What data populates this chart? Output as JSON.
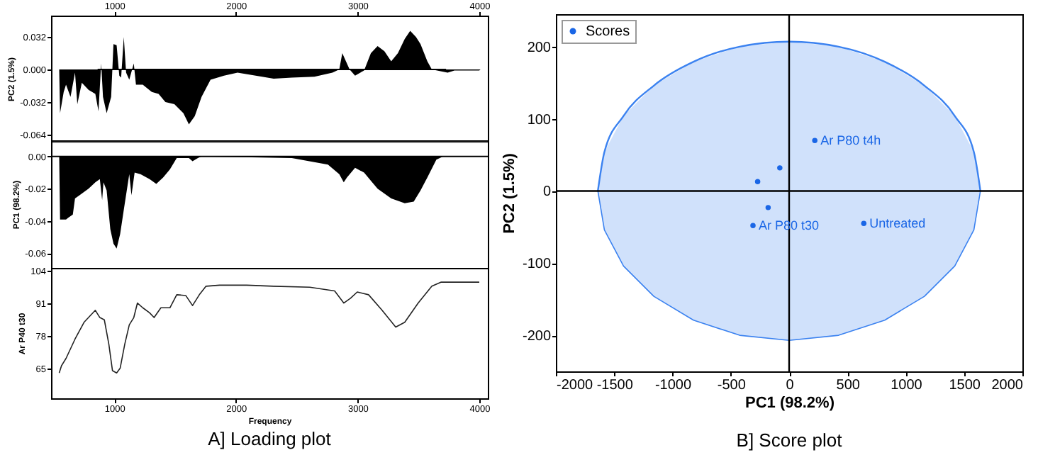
{
  "chart_data": [
    {
      "type": "area",
      "ylabel": "PC2 (1.5%)",
      "xlim": [
        480,
        4070
      ],
      "xticks": [
        1000,
        2000,
        3000,
        4000
      ],
      "x2lim": [
        480,
        4070
      ],
      "x2ticks": [
        1000,
        2000,
        3000,
        4000
      ],
      "tick_labels": "y",
      "ylim": [
        -0.071,
        0.053
      ],
      "yticks": [
        0.032,
        {
          "value": 0,
          "label": "0.000"
        },
        -0.032,
        -0.064
      ],
      "series": [
        {
          "color": "#000000",
          "x": [
            547,
            554,
            584,
            603,
            640,
            677,
            696,
            733,
            788,
            844,
            870,
            892,
            907,
            937,
            974,
            993,
            1019,
            1041,
            1056,
            1078,
            1097,
            1123,
            1160,
            1178,
            1234,
            1308,
            1364,
            1420,
            1494,
            1568,
            1613,
            1661,
            1717,
            1791,
            1902,
            2013,
            2162,
            2310,
            2459,
            2645,
            2793,
            2849,
            2874,
            2904,
            2934,
            2979,
            3053,
            3109,
            3164,
            3220,
            3276,
            3331,
            3387,
            3432,
            3480,
            3517,
            3573,
            3610,
            3740,
            3796,
            4000,
            4010
          ],
          "values": [
            0,
            -0.043,
            -0.022,
            -0.015,
            -0.027,
            -0.003,
            -0.034,
            -0.013,
            -0.02,
            -0.024,
            -0.041,
            0.006,
            -0.027,
            -0.043,
            -0.027,
            0.025,
            0.024,
            -0.006,
            -0.008,
            0.032,
            -0.003,
            -0.01,
            0.006,
            -0.015,
            -0.015,
            -0.022,
            -0.024,
            -0.032,
            -0.034,
            -0.043,
            -0.054,
            -0.046,
            -0.027,
            -0.01,
            -0.006,
            -0.003,
            -0.006,
            -0.009,
            -0.008,
            -0.007,
            -0.003,
            0,
            0.016,
            0.008,
            0,
            -0.006,
            -0.001,
            0.016,
            0.023,
            0.018,
            0.008,
            0.016,
            0.03,
            0.038,
            0.032,
            0.025,
            0.008,
            0,
            -0.003,
            -0.001,
            -0.001,
            0
          ]
        }
      ],
      "ref_lines": [
        {
          "axis": "y",
          "value": 0,
          "color": "#000000"
        }
      ]
    },
    {
      "type": "area",
      "ylabel": "PC1 (98.2%)",
      "xlim": [
        480,
        4070
      ],
      "xticks": [
        1000,
        2000,
        3000,
        4000
      ],
      "ylim": [
        -0.069,
        0.01
      ],
      "yticks": [
        {
          "value": 0,
          "label": "0.00"
        },
        -0.02,
        -0.04,
        -0.06
      ],
      "tick_labels": "y",
      "series": [
        {
          "color": "#000000",
          "x": [
            547,
            554,
            603,
            621,
            659,
            677,
            714,
            788,
            844,
            881,
            900,
            911,
            937,
            967,
            993,
            1019,
            1048,
            1078,
            1123,
            1141,
            1167,
            1215,
            1290,
            1345,
            1401,
            1457,
            1513,
            1568,
            1613,
            1643,
            1687,
            1717,
            2459,
            2756,
            2849,
            2886,
            2912,
            2979,
            3053,
            3164,
            3276,
            3387,
            3461,
            3517,
            3573,
            3647,
            3703,
            4000
          ],
          "values": [
            0,
            -0.039,
            -0.039,
            -0.038,
            -0.036,
            -0.026,
            -0.024,
            -0.02,
            -0.016,
            -0.014,
            -0.027,
            -0.016,
            -0.021,
            -0.045,
            -0.054,
            -0.057,
            -0.048,
            -0.033,
            -0.011,
            -0.024,
            -0.01,
            -0.011,
            -0.014,
            -0.017,
            -0.013,
            -0.008,
            -0.001,
            -0.001,
            -0.001,
            -0.003,
            -0.001,
            0,
            -0.001,
            -0.005,
            -0.011,
            -0.016,
            -0.013,
            -0.007,
            -0.01,
            -0.02,
            -0.026,
            -0.029,
            -0.028,
            -0.021,
            -0.013,
            -0.002,
            0,
            0
          ]
        }
      ],
      "ref_lines": [
        {
          "axis": "y",
          "value": 0,
          "color": "#000000"
        }
      ]
    },
    {
      "type": "line",
      "ylabel": "Ar P40 t30",
      "xlabel": "Frequency",
      "xlim": [
        480,
        4070
      ],
      "xticks": [
        1000,
        2000,
        3000,
        4000
      ],
      "ylim": [
        53,
        105
      ],
      "yticks": [
        65,
        78,
        91,
        104
      ],
      "annotations": [
        "A] Loading plot"
      ],
      "series": [
        {
          "color": "#222222",
          "x": [
            547,
            566,
            603,
            677,
            751,
            844,
            881,
            918,
            955,
            985,
            1019,
            1048,
            1086,
            1123,
            1160,
            1190,
            1234,
            1290,
            1327,
            1383,
            1457,
            1513,
            1587,
            1643,
            1699,
            1754,
            1865,
            2088,
            2310,
            2607,
            2811,
            2886,
            2941,
            2997,
            3090,
            3201,
            3313,
            3387,
            3498,
            3610,
            3684,
            4000
          ],
          "values": [
            63.1,
            66,
            68.9,
            76.6,
            83.3,
            88.1,
            85.2,
            84.3,
            74.6,
            64,
            63.1,
            65,
            74.6,
            82.3,
            85.2,
            91,
            89.1,
            87.1,
            85.2,
            89.1,
            89.1,
            94.3,
            94,
            90,
            94.3,
            97.7,
            98.1,
            98.1,
            97.7,
            97.3,
            95.8,
            91,
            92.9,
            95.4,
            94.3,
            88.1,
            81.4,
            83.3,
            91,
            97.7,
            99.3,
            99.3
          ]
        }
      ]
    },
    {
      "type": "scatter",
      "xlabel": "PC1 (98.2%)",
      "ylabel": "PC2 (1.5%)",
      "xlim": [
        -2000,
        2000
      ],
      "xticks": [
        -2000,
        -1500,
        -1000,
        -500,
        0,
        500,
        1000,
        1500,
        2000
      ],
      "ylim": [
        -250,
        245
      ],
      "yticks": [
        -200,
        -100,
        0,
        100,
        200
      ],
      "legend": "top left",
      "series": [
        {
          "type": "line",
          "color": "#3b82f0",
          "x": [
            -1640,
            -1584,
            -1420,
            -1160,
            -820,
            -424,
            0,
            424,
            820,
            1160,
            1420,
            1584,
            1640
          ],
          "values": [
            0,
            54,
            104,
            146,
            179,
            200,
            207,
            200,
            179,
            146,
            104,
            54,
            0
          ],
          "upper": [
            0,
            54,
            104,
            146,
            179,
            200,
            207,
            200,
            179,
            146,
            104,
            54,
            0
          ],
          "lower": [
            0,
            -54,
            -104,
            -146,
            -179,
            -200,
            -207,
            -200,
            -179,
            -146,
            -104,
            -54,
            0
          ]
        },
        {
          "type": "line",
          "color": "#3b82f0",
          "x": [
            -1640,
            -1584,
            -1420,
            -1160,
            -820,
            -424,
            0,
            424,
            820,
            1160,
            1420,
            1584,
            1640
          ],
          "values": [
            0,
            -54,
            -104,
            -146,
            -179,
            -200,
            -207,
            -200,
            -179,
            -146,
            -104,
            -54,
            0
          ]
        },
        {
          "name": "Scores",
          "color": "#1a66e6",
          "marker": "circle",
          "x": [
            220,
            -80,
            -270,
            -180,
            -310,
            640
          ],
          "values": [
            70,
            32,
            13,
            -23,
            -48,
            -45
          ]
        }
      ],
      "ref_lines": [
        {
          "axis": "x",
          "value": 0,
          "color": "#000000"
        },
        {
          "axis": "y",
          "value": 0,
          "color": "#000000"
        }
      ],
      "annotations": [
        {
          "text": "Ar P80 t4h",
          "x": 220,
          "y": 70
        },
        {
          "text": "Ar P80 t30",
          "x": -310,
          "y": -48
        },
        {
          "text": "Untreated",
          "x": 640,
          "y": -45
        },
        "B] Score plot"
      ]
    }
  ]
}
